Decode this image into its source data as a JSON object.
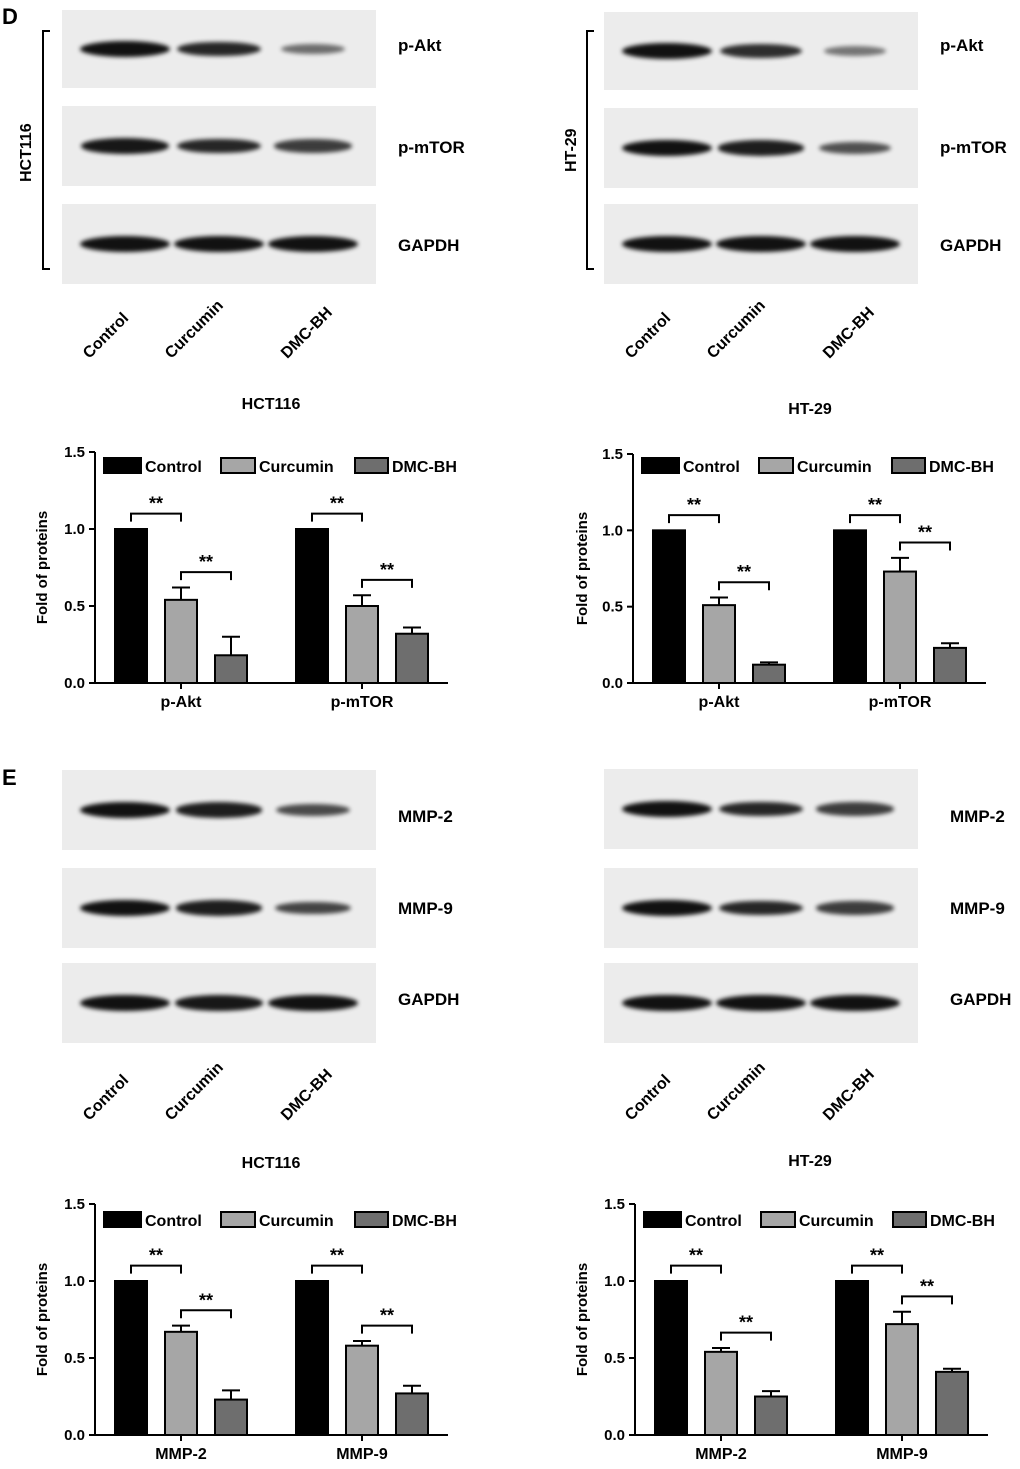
{
  "panels": {
    "D": {
      "letter": "D",
      "blots": [
        {
          "cell_line": "HCT116",
          "rows": [
            {
              "label": "p-Akt",
              "intensity": [
                1.0,
                0.85,
                0.35
              ]
            },
            {
              "label": "p-mTOR",
              "intensity": [
                0.95,
                0.85,
                0.7
              ]
            },
            {
              "label": "GAPDH",
              "intensity": [
                1.0,
                1.0,
                1.0
              ]
            }
          ],
          "lanes": [
            "Control",
            "Curcumin",
            "DMC-BH"
          ]
        },
        {
          "cell_line": "HT-29",
          "rows": [
            {
              "label": "p-Akt",
              "intensity": [
                1.0,
                0.8,
                0.3
              ]
            },
            {
              "label": "p-mTOR",
              "intensity": [
                1.0,
                0.9,
                0.55
              ]
            },
            {
              "label": "GAPDH",
              "intensity": [
                1.0,
                1.0,
                1.0
              ]
            }
          ],
          "lanes": [
            "Control",
            "Curcumin",
            "DMC-BH"
          ]
        }
      ]
    },
    "E": {
      "letter": "E",
      "blots": [
        {
          "cell_line": "HCT116",
          "rows": [
            {
              "label": "MMP-2",
              "intensity": [
                1.0,
                0.9,
                0.6
              ]
            },
            {
              "label": "MMP-9",
              "intensity": [
                1.0,
                0.9,
                0.65
              ]
            },
            {
              "label": "GAPDH",
              "intensity": [
                1.0,
                0.95,
                1.0
              ]
            }
          ],
          "lanes": [
            "Control",
            "Curcumin",
            "DMC-BH"
          ]
        },
        {
          "cell_line": "HT-29",
          "rows": [
            {
              "label": "MMP-2",
              "intensity": [
                1.0,
                0.85,
                0.7
              ]
            },
            {
              "label": "MMP-9",
              "intensity": [
                1.0,
                0.85,
                0.7
              ]
            },
            {
              "label": "GAPDH",
              "intensity": [
                1.0,
                1.0,
                1.0
              ]
            }
          ],
          "lanes": [
            "Control",
            "Curcumin",
            "DMC-BH"
          ]
        }
      ]
    }
  },
  "colors": {
    "control": "#000000",
    "curcumin": "#a6a6a6",
    "dmcbh": "#6e6e6e"
  },
  "chart_data": [
    {
      "type": "bar",
      "title": "HCT116",
      "categories": [
        "p-Akt",
        "p-mTOR"
      ],
      "series": [
        {
          "name": "Control",
          "values": [
            1.0,
            1.0
          ],
          "errors": [
            0,
            0
          ]
        },
        {
          "name": "Curcumin",
          "values": [
            0.54,
            0.5
          ],
          "errors": [
            0.08,
            0.07
          ]
        },
        {
          "name": "DMC-BH",
          "values": [
            0.18,
            0.32
          ],
          "errors": [
            0.12,
            0.04
          ]
        }
      ],
      "ylabel": "Fold of proteins",
      "ylim": [
        0,
        1.5
      ],
      "yticks": [
        "0.0",
        "0.5",
        "1.0",
        "1.5"
      ],
      "significance": "**"
    },
    {
      "type": "bar",
      "title": "HT-29",
      "categories": [
        "p-Akt",
        "p-mTOR"
      ],
      "series": [
        {
          "name": "Control",
          "values": [
            1.0,
            1.0
          ],
          "errors": [
            0,
            0
          ]
        },
        {
          "name": "Curcumin",
          "values": [
            0.51,
            0.73
          ],
          "errors": [
            0.05,
            0.09
          ]
        },
        {
          "name": "DMC-BH",
          "values": [
            0.12,
            0.23
          ],
          "errors": [
            0.015,
            0.03
          ]
        }
      ],
      "ylabel": "Fold of proteins",
      "ylim": [
        0,
        1.5
      ],
      "yticks": [
        "0.0",
        "0.5",
        "1.0",
        "1.5"
      ],
      "significance": "**"
    },
    {
      "type": "bar",
      "title": "HCT116",
      "categories": [
        "MMP-2",
        "MMP-9"
      ],
      "series": [
        {
          "name": "Control",
          "values": [
            1.0,
            1.0
          ],
          "errors": [
            0,
            0
          ]
        },
        {
          "name": "Curcumin",
          "values": [
            0.67,
            0.58
          ],
          "errors": [
            0.04,
            0.03
          ]
        },
        {
          "name": "DMC-BH",
          "values": [
            0.23,
            0.27
          ],
          "errors": [
            0.06,
            0.05
          ]
        }
      ],
      "ylabel": "Fold of proteins",
      "ylim": [
        0,
        1.5
      ],
      "yticks": [
        "0.0",
        "0.5",
        "1.0",
        "1.5"
      ],
      "significance": "**"
    },
    {
      "type": "bar",
      "title": "HT-29",
      "categories": [
        "MMP-2",
        "MMP-9"
      ],
      "series": [
        {
          "name": "Control",
          "values": [
            1.0,
            1.0
          ],
          "errors": [
            0,
            0
          ]
        },
        {
          "name": "Curcumin",
          "values": [
            0.54,
            0.72
          ],
          "errors": [
            0.025,
            0.08
          ]
        },
        {
          "name": "DMC-BH",
          "values": [
            0.25,
            0.41
          ],
          "errors": [
            0.035,
            0.02
          ]
        }
      ],
      "ylabel": "Fold of proteins",
      "ylim": [
        0,
        1.5
      ],
      "yticks": [
        "0.0",
        "0.5",
        "1.0",
        "1.5"
      ],
      "significance": "**"
    }
  ]
}
